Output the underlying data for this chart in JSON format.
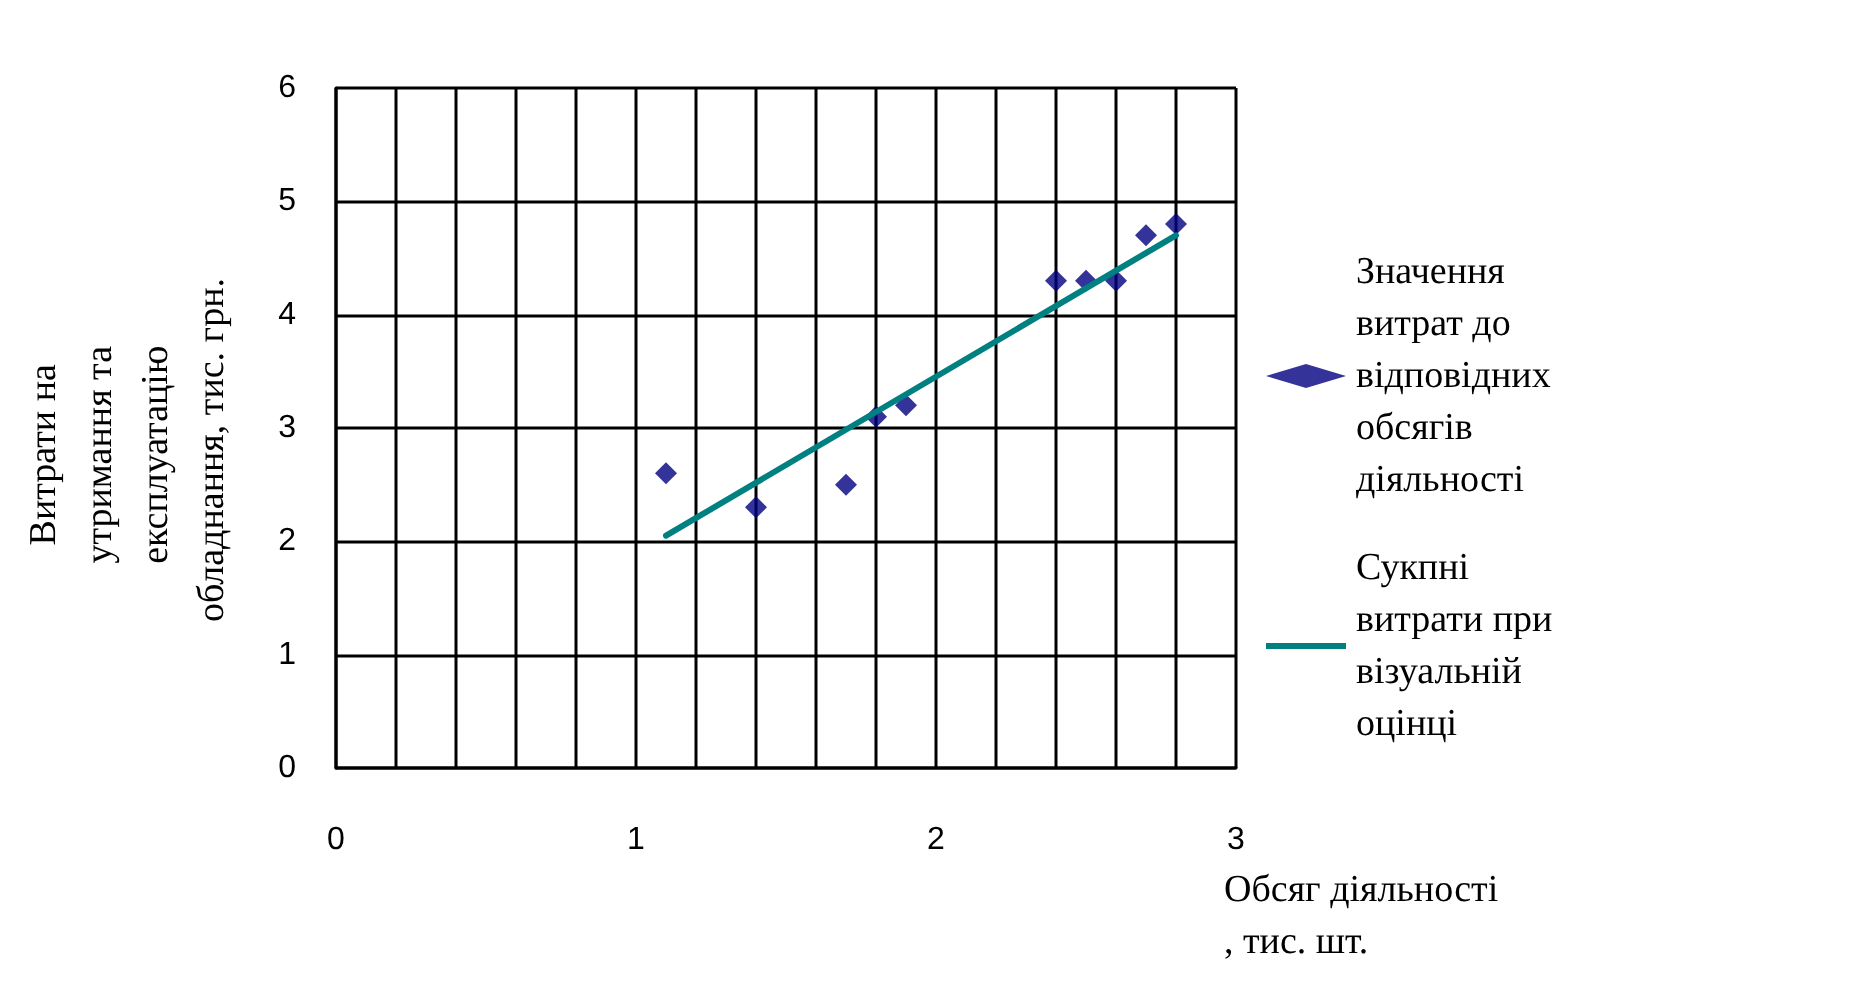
{
  "chart_data": {
    "type": "scatter",
    "xlabel": "Обсяг діяльності, тис. шт.",
    "ylabel": "Витрати на утримання та експлуатацію обладнання, тис. грн.",
    "series": [
      {
        "name": "Значення витрат до відповідних обсягів діяльності",
        "color": "#000080",
        "marker": "diamond",
        "x": [
          1.1,
          1.4,
          1.7,
          1.8,
          1.9,
          2.4,
          2.5,
          2.6,
          2.7,
          2.8
        ],
        "values": [
          2.6,
          2.3,
          2.5,
          3.1,
          3.2,
          4.3,
          4.3,
          4.3,
          4.7,
          4.8
        ]
      },
      {
        "name": "Сукпні витрати при візуальній оцінці",
        "type": "line",
        "color": "#008080",
        "marker": "none",
        "x": [
          1.1,
          2.8
        ],
        "values": [
          2.05,
          4.7
        ]
      }
    ],
    "xlim": [
      0,
      3
    ],
    "xticks": [
      0,
      {
        "value": 0.2,
        "label": null
      },
      {
        "value": 0.4,
        "label": null
      },
      {
        "value": 0.6,
        "label": null
      },
      {
        "value": 0.8,
        "label": null
      },
      1,
      {
        "value": 1.2,
        "label": null
      },
      {
        "value": 1.4,
        "label": null
      },
      {
        "value": 1.6,
        "label": null
      },
      {
        "value": 1.8,
        "label": null
      },
      2,
      {
        "value": 2.2,
        "label": null
      },
      {
        "value": 2.4,
        "label": null
      },
      {
        "value": 2.6,
        "label": null
      },
      {
        "value": 2.8,
        "label": null
      },
      3
    ],
    "ylim": [
      0,
      6
    ],
    "yticks": [
      0,
      1,
      2,
      3,
      4,
      5,
      6
    ],
    "grid": true,
    "legend": "right"
  }
}
